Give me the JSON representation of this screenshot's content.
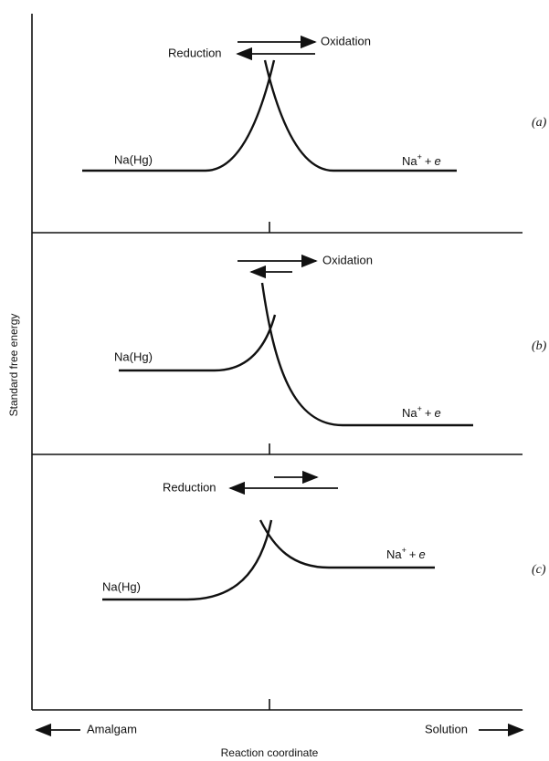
{
  "axes": {
    "y_label": "Standard free energy",
    "x_label": "Reaction coordinate",
    "left_end": "Amalgam",
    "right_end": "Solution"
  },
  "panels": [
    {
      "label": "(a)",
      "arrow_upper": "Oxidation",
      "arrow_lower": "Reduction",
      "left_species": "Na(Hg)",
      "right_species": {
        "base": "Na",
        "sup": "+",
        "plus": "+",
        "e": "e"
      }
    },
    {
      "label": "(b)",
      "arrow_upper": "Oxidation",
      "left_species": "Na(Hg)",
      "right_species": {
        "base": "Na",
        "sup": "+",
        "plus": "+",
        "e": "e"
      }
    },
    {
      "label": "(c)",
      "arrow_lower": "Reduction",
      "left_species": "Na(Hg)",
      "right_species": {
        "base": "Na",
        "sup": "+",
        "plus": "+",
        "e": "e"
      }
    }
  ]
}
